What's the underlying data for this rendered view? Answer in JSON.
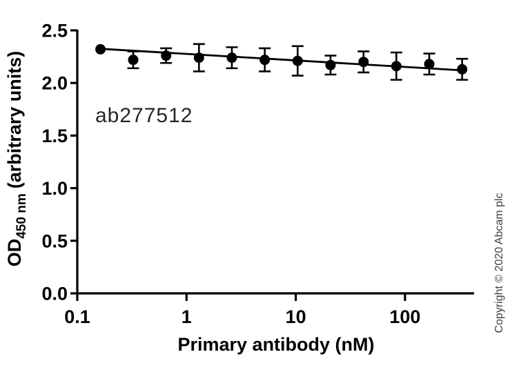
{
  "figure": {
    "annotation": "ab277512",
    "copyright": "Copyright © 2020 Abcam plc",
    "colors": {
      "plot": "#000000",
      "annotation_text": "#262626",
      "copyright_text": "#3f3f3f",
      "background": "#ffffff"
    }
  },
  "chart_data": {
    "type": "scatter",
    "title": "",
    "xlabel": "Primary antibody (nM)",
    "ylabel_main": "OD",
    "ylabel_sub": "450 nm",
    "ylabel_rest": "(arbitrary units)",
    "x_scale": "log",
    "xlim": [
      0.1,
      430
    ],
    "ylim": [
      0,
      2.5
    ],
    "x_ticks": [
      0.1,
      1,
      10,
      100
    ],
    "x_tick_labels": [
      "0.1",
      "1",
      "10",
      "100"
    ],
    "y_ticks": [
      0,
      0.5,
      1.0,
      1.5,
      2.0,
      2.5
    ],
    "y_tick_labels": [
      "0.0",
      "0.5",
      "1.0",
      "1.5",
      "2.0",
      "2.5"
    ],
    "grid": false,
    "legend": "none",
    "series": [
      {
        "name": "ab277512",
        "marker": "filled-circle",
        "points": [
          {
            "x": 0.163,
            "y": 2.32,
            "err": 0
          },
          {
            "x": 0.325,
            "y": 2.22,
            "err": 0.08
          },
          {
            "x": 0.65,
            "y": 2.26,
            "err": 0.07
          },
          {
            "x": 1.3,
            "y": 2.24,
            "err": 0.13
          },
          {
            "x": 2.6,
            "y": 2.24,
            "err": 0.1
          },
          {
            "x": 5.2,
            "y": 2.22,
            "err": 0.11
          },
          {
            "x": 10.4,
            "y": 2.21,
            "err": 0.14
          },
          {
            "x": 20.8,
            "y": 2.17,
            "err": 0.09
          },
          {
            "x": 41.7,
            "y": 2.2,
            "err": 0.1
          },
          {
            "x": 83.3,
            "y": 2.16,
            "err": 0.13
          },
          {
            "x": 166.7,
            "y": 2.18,
            "err": 0.1
          },
          {
            "x": 333.3,
            "y": 2.13,
            "err": 0.1
          }
        ]
      }
    ],
    "trendline": {
      "x1": 0.163,
      "y1": 2.325,
      "x2": 333.3,
      "y2": 2.12
    }
  }
}
